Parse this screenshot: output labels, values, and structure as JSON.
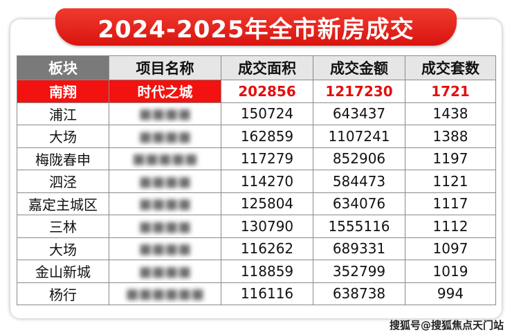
{
  "title": "2024-2025年全市新房成交",
  "headers": [
    "板块",
    "项目名称",
    "成交面积",
    "成交金额",
    "成交套数"
  ],
  "rows": [
    {
      "region": "南翔",
      "project": "时代之城",
      "area": "202856",
      "amount": "1217230",
      "units": "1721",
      "highlight": true,
      "project_obscured": false
    },
    {
      "region": "浦江",
      "project": "■■■■",
      "area": "150724",
      "amount": "643437",
      "units": "1438",
      "highlight": false,
      "project_obscured": true
    },
    {
      "region": "大场",
      "project": "■■■■",
      "area": "162859",
      "amount": "1107241",
      "units": "1388",
      "highlight": false,
      "project_obscured": true
    },
    {
      "region": "梅陇春申",
      "project": "■■■■■",
      "area": "117279",
      "amount": "852906",
      "units": "1197",
      "highlight": false,
      "project_obscured": true
    },
    {
      "region": "泗泾",
      "project": "■■■■",
      "area": "114270",
      "amount": "584473",
      "units": "1121",
      "highlight": false,
      "project_obscured": true
    },
    {
      "region": "嘉定主城区",
      "project": "■■■■",
      "area": "125804",
      "amount": "634076",
      "units": "1117",
      "highlight": false,
      "project_obscured": true
    },
    {
      "region": "三林",
      "project": "■■■■",
      "area": "130790",
      "amount": "1555116",
      "units": "1112",
      "highlight": false,
      "project_obscured": true
    },
    {
      "region": "大场",
      "project": "■■■■",
      "area": "116262",
      "amount": "689331",
      "units": "1097",
      "highlight": false,
      "project_obscured": true
    },
    {
      "region": "金山新城",
      "project": "■■■■",
      "area": "118859",
      "amount": "352799",
      "units": "1019",
      "highlight": false,
      "project_obscured": true
    },
    {
      "region": "杨行",
      "project": "■■■■■■",
      "area": "116116",
      "amount": "638738",
      "units": "994",
      "highlight": false,
      "project_obscured": true
    }
  ],
  "watermark": "搜狐号@搜狐焦点天门站"
}
